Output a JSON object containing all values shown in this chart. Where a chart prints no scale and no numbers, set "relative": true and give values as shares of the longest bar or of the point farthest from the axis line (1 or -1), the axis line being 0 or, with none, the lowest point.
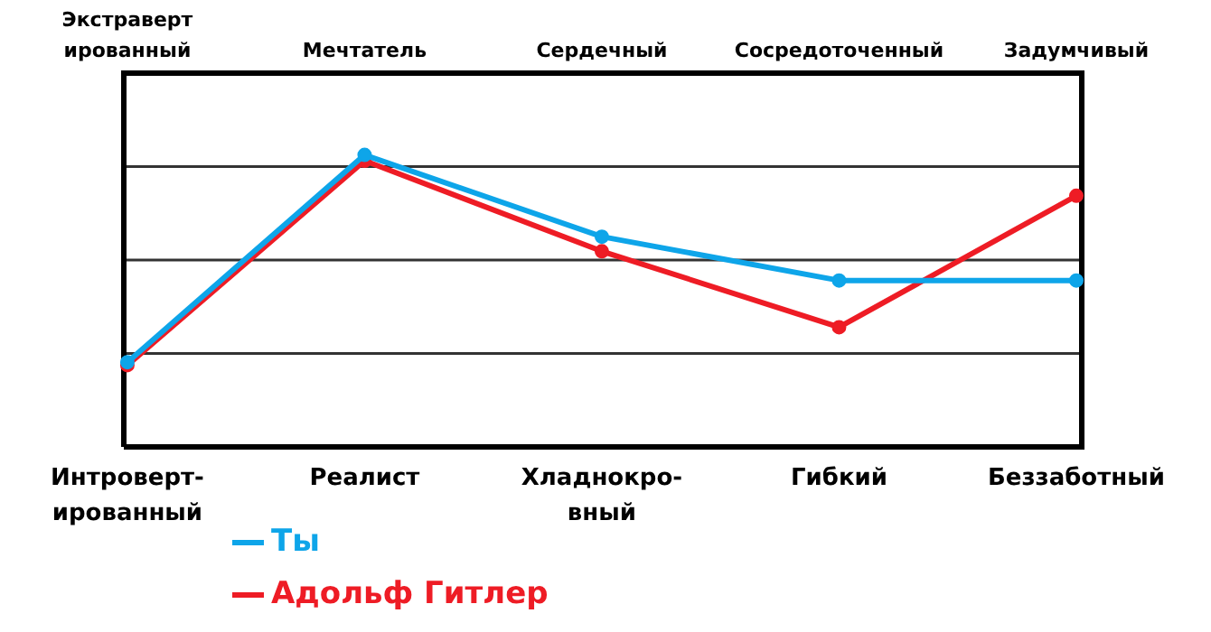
{
  "chart_data": {
    "type": "line",
    "relative": true,
    "categories": [
      "Интроверт-\nированный",
      "Реалист",
      "Хладнокро-\nвный",
      "Гибкий",
      "Беззаботный"
    ],
    "annotations": [
      "Экстраверт\nированный",
      "Мечтатель",
      "Сердечный",
      "Сосредоточенный",
      "Задумчивый"
    ],
    "series": [
      {
        "name": "Ты",
        "color": "#0ea5e9",
        "values": [
          0.29,
          1.0,
          0.72,
          0.57,
          0.57
        ]
      },
      {
        "name": "Адольф Гитлер",
        "color": "#ee1c25",
        "values": [
          0.28,
          0.98,
          0.67,
          0.41,
          0.86
        ]
      }
    ],
    "grid": "y",
    "marker": "circle",
    "line_style": "solid",
    "legend": "bottom left"
  }
}
